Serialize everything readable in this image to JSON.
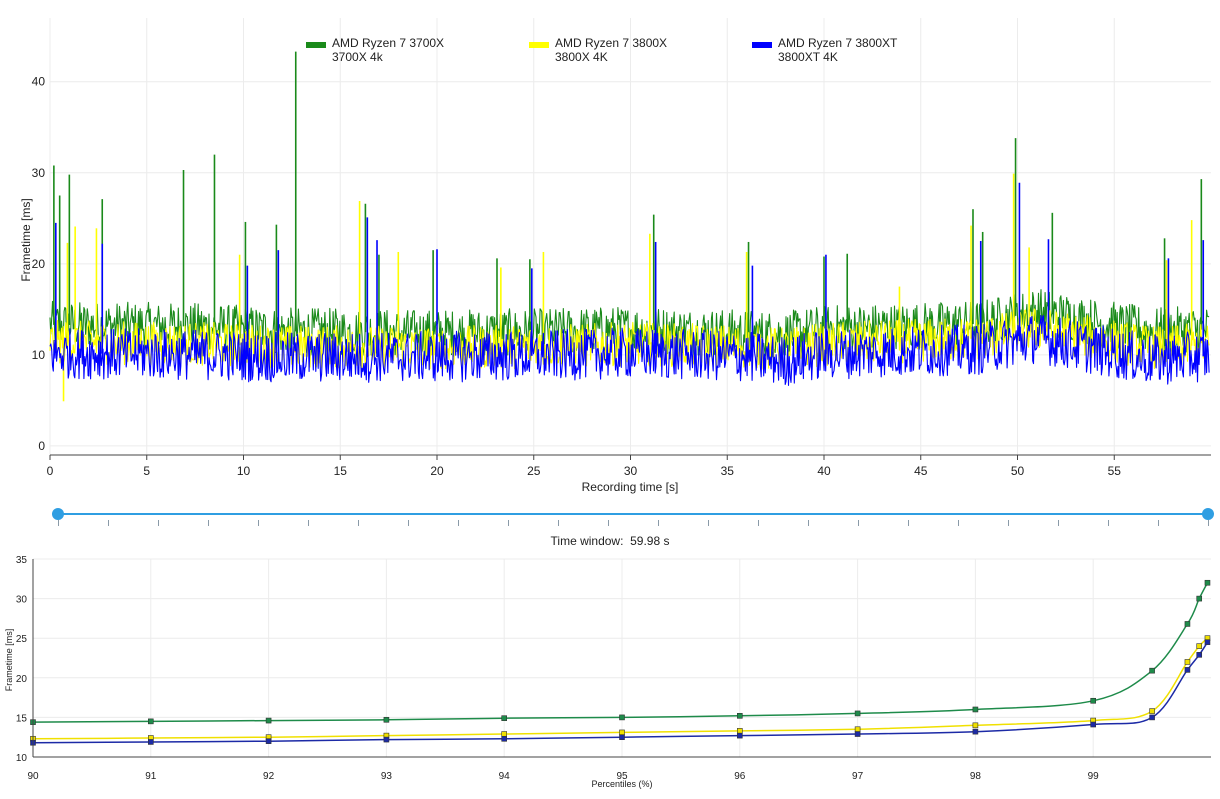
{
  "colors": {
    "series_3700x": "#1a8a1a",
    "series_3800x": "#ffff00",
    "series_3800xt": "#0000ff",
    "grid": "#ececec",
    "axis": "#222222",
    "slider": "#2f9ee2",
    "pct_3700x": "#1e8b4a",
    "pct_3800x": "#f0e000",
    "pct_3800xt": "#1c2aa6"
  },
  "legend": [
    {
      "line1": "AMD Ryzen 7 3700X",
      "line2": "3700X 4k",
      "color_key": "series_3700x"
    },
    {
      "line1": "AMD Ryzen 7 3800X",
      "line2": "3800X 4K",
      "color_key": "series_3800x"
    },
    {
      "line1": "AMD Ryzen 7 3800XT",
      "line2": "3800XT 4K",
      "color_key": "series_3800xt"
    }
  ],
  "time_window": {
    "label": "Time window:",
    "value": "59.98 s"
  },
  "chart_data": [
    {
      "type": "line",
      "ylabel": "Frametime [ms]",
      "xlabel": "Recording time [s]",
      "xlim": [
        0,
        60
      ],
      "ylim": [
        -1,
        47
      ],
      "x_ticks": [
        0,
        5,
        10,
        15,
        20,
        25,
        30,
        35,
        40,
        45,
        50,
        55
      ],
      "y_ticks": [
        0,
        10,
        20,
        30,
        40
      ],
      "grid": true,
      "legend_position": "top-center",
      "series": [
        {
          "name": "AMD Ryzen 7 3700X",
          "color_key": "series_3700x",
          "baseline": [
            [
              0,
              13.3
            ],
            [
              8,
              13.1
            ],
            [
              12,
              12.6
            ],
            [
              20,
              12.4
            ],
            [
              25,
              12.5
            ],
            [
              30,
              12.8
            ],
            [
              36,
              12.4
            ],
            [
              38,
              12.2
            ],
            [
              40,
              12.9
            ],
            [
              48,
              13.4
            ],
            [
              51,
              14.8
            ],
            [
              54,
              13.6
            ],
            [
              57,
              12.6
            ],
            [
              60,
              12.8
            ]
          ],
          "spikes": [
            [
              0.2,
              30.8
            ],
            [
              0.5,
              27.5
            ],
            [
              1.0,
              29.8
            ],
            [
              2.7,
              27.1
            ],
            [
              6.9,
              30.3
            ],
            [
              8.5,
              32.0
            ],
            [
              10.1,
              24.6
            ],
            [
              11.7,
              24.3
            ],
            [
              12.7,
              43.3
            ],
            [
              16.3,
              26.6
            ],
            [
              17.0,
              21.0
            ],
            [
              19.8,
              21.5
            ],
            [
              23.1,
              20.6
            ],
            [
              24.8,
              20.5
            ],
            [
              31.2,
              25.4
            ],
            [
              36.1,
              22.4
            ],
            [
              40.0,
              20.8
            ],
            [
              41.2,
              21.1
            ],
            [
              47.7,
              26.0
            ],
            [
              48.2,
              23.5
            ],
            [
              49.9,
              33.8
            ],
            [
              51.8,
              25.6
            ],
            [
              57.6,
              22.8
            ],
            [
              59.5,
              29.3
            ]
          ]
        },
        {
          "name": "AMD Ryzen 7 3800X",
          "color_key": "series_3800x",
          "baseline": [
            [
              0,
              11.4
            ],
            [
              8,
              11.2
            ],
            [
              12,
              10.9
            ],
            [
              20,
              10.8
            ],
            [
              25,
              10.9
            ],
            [
              30,
              11.2
            ],
            [
              36,
              10.9
            ],
            [
              38,
              10.6
            ],
            [
              40,
              11.2
            ],
            [
              48,
              11.8
            ],
            [
              51,
              12.9
            ],
            [
              54,
              11.8
            ],
            [
              57,
              10.8
            ],
            [
              60,
              11.1
            ]
          ],
          "spikes": [
            [
              0.9,
              22.3
            ],
            [
              1.3,
              24.1
            ],
            [
              2.4,
              23.9
            ],
            [
              9.8,
              21.0
            ],
            [
              16.0,
              26.9
            ],
            [
              18.0,
              21.3
            ],
            [
              23.3,
              19.6
            ],
            [
              25.5,
              21.3
            ],
            [
              31.0,
              23.3
            ],
            [
              36.0,
              21.3
            ],
            [
              43.9,
              17.5
            ],
            [
              47.6,
              24.2
            ],
            [
              49.8,
              29.9
            ],
            [
              50.6,
              21.8
            ],
            [
              57.7,
              20.4
            ],
            [
              59.0,
              24.8
            ],
            [
              0.7,
              4.9
            ]
          ]
        },
        {
          "name": "AMD Ryzen 7 3800XT",
          "color_key": "series_3800xt",
          "baseline": [
            [
              0,
              10.2
            ],
            [
              8,
              10.0
            ],
            [
              12,
              9.7
            ],
            [
              20,
              9.8
            ],
            [
              25,
              9.9
            ],
            [
              30,
              10.2
            ],
            [
              36,
              9.8
            ],
            [
              38,
              9.3
            ],
            [
              40,
              10.1
            ],
            [
              48,
              10.6
            ],
            [
              51,
              11.9
            ],
            [
              54,
              10.6
            ],
            [
              57,
              9.4
            ],
            [
              60,
              9.9
            ]
          ],
          "spikes": [
            [
              0.3,
              24.5
            ],
            [
              2.7,
              22.2
            ],
            [
              10.2,
              19.8
            ],
            [
              11.8,
              21.5
            ],
            [
              16.4,
              25.1
            ],
            [
              16.9,
              22.6
            ],
            [
              20.0,
              21.6
            ],
            [
              24.9,
              19.5
            ],
            [
              31.3,
              22.4
            ],
            [
              36.3,
              19.8
            ],
            [
              40.1,
              21.0
            ],
            [
              48.1,
              22.5
            ],
            [
              50.1,
              28.9
            ],
            [
              51.6,
              22.7
            ],
            [
              57.8,
              20.6
            ],
            [
              59.6,
              22.6
            ]
          ]
        }
      ]
    },
    {
      "type": "line",
      "ylabel": "Frametime [ms]",
      "xlabel": "Percentiles (%)",
      "xlim": [
        90,
        100
      ],
      "ylim": [
        10,
        35
      ],
      "x_ticks": [
        90,
        91,
        92,
        93,
        94,
        95,
        96,
        97,
        98,
        99
      ],
      "y_ticks": [
        10,
        15,
        20,
        25,
        30,
        35
      ],
      "grid": true,
      "series": [
        {
          "name": "AMD Ryzen 7 3700X",
          "color_key": "pct_3700x",
          "x": [
            90,
            91,
            92,
            93,
            94,
            95,
            96,
            97,
            98,
            99,
            99.5,
            99.8,
            99.9,
            99.97
          ],
          "values": [
            14.4,
            14.5,
            14.6,
            14.7,
            14.9,
            15.0,
            15.2,
            15.5,
            16.0,
            17.1,
            20.9,
            26.8,
            30.0,
            32.0
          ]
        },
        {
          "name": "AMD Ryzen 7 3800X",
          "color_key": "pct_3800x",
          "x": [
            90,
            91,
            92,
            93,
            94,
            95,
            96,
            97,
            98,
            99,
            99.5,
            99.8,
            99.9,
            99.97
          ],
          "values": [
            12.3,
            12.4,
            12.5,
            12.7,
            12.9,
            13.1,
            13.3,
            13.5,
            14.0,
            14.6,
            15.8,
            22.0,
            24.0,
            25.0
          ]
        },
        {
          "name": "AMD Ryzen 7 3800XT",
          "color_key": "pct_3800xt",
          "x": [
            90,
            91,
            92,
            93,
            94,
            95,
            96,
            97,
            98,
            99,
            99.5,
            99.8,
            99.9,
            99.97
          ],
          "values": [
            11.8,
            11.9,
            12.0,
            12.2,
            12.3,
            12.5,
            12.7,
            12.9,
            13.2,
            14.1,
            15.0,
            21.0,
            22.9,
            24.5
          ]
        }
      ]
    }
  ]
}
